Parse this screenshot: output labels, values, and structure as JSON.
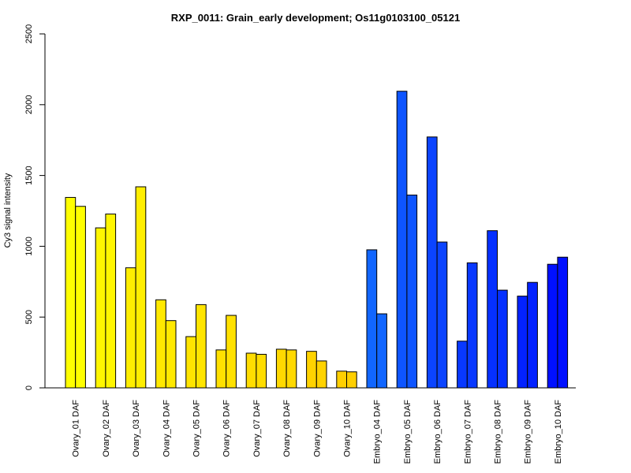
{
  "chart_data": {
    "type": "bar",
    "title": "RXP_0011: Grain_early development; Os11g0103100_05121",
    "ylabel": "Cy3 signal intensity",
    "xlabel": "",
    "ylim": [
      0,
      2500
    ],
    "yticks": [
      0,
      500,
      1000,
      1500,
      2000,
      2500
    ],
    "grid": false,
    "legend": "none",
    "categories": [
      "Ovary_01 DAF",
      "Ovary_02 DAF",
      "Ovary_03 DAF",
      "Ovary_04 DAF",
      "Ovary_05 DAF",
      "Ovary_06 DAF",
      "Ovary_07 DAF",
      "Ovary_08 DAF",
      "Ovary_09 DAF",
      "Ovary_10 DAF",
      "Embryo_04 DAF",
      "Embryo_05 DAF",
      "Embryo_06 DAF",
      "Embryo_07 DAF",
      "Embryo_08 DAF",
      "Embryo_09 DAF",
      "Embryo_10 DAF"
    ],
    "colors": [
      "#FFFF00",
      "#FFF600",
      "#FFEE00",
      "#FFE900",
      "#FFE500",
      "#FFE100",
      "#FFDD00",
      "#FFD900",
      "#FFD300",
      "#FFCF00",
      "#1166FF",
      "#0E55FF",
      "#0B44FF",
      "#0838FF",
      "#0530FF",
      "#0322FF",
      "#0010FF"
    ],
    "series": [
      {
        "values": [
          1345,
          1130,
          848,
          622,
          362,
          268,
          245,
          273,
          258,
          118,
          975,
          2095,
          1772,
          330,
          1110,
          648,
          873
        ]
      },
      {
        "values": [
          1282,
          1228,
          1420,
          475,
          588,
          512,
          237,
          268,
          190,
          113,
          523,
          1362,
          1030,
          883,
          690,
          745,
          923
        ]
      }
    ]
  }
}
